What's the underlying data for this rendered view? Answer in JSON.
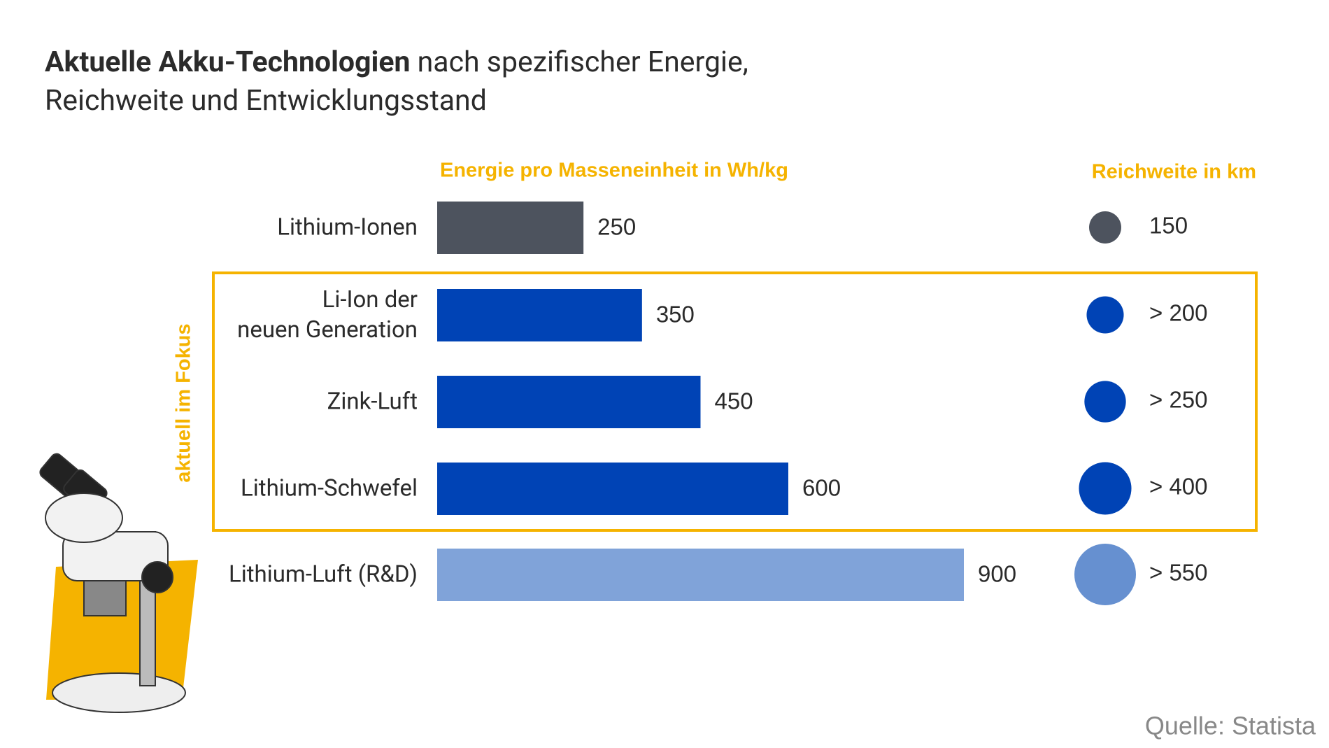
{
  "chart_data": {
    "type": "bar",
    "title_bold": "Aktuelle Akku-Technologien",
    "title": "nach spezifischer Energie,\nReichweite und Entwicklungsstand",
    "value_header": "Energie pro Masseneinheit in Wh/kg",
    "bubble_header": "Reichweite in km",
    "focus_label": "aktuell im Fokus",
    "source": "Quelle: Statista",
    "categories": [
      "Lithium-Ionen",
      "Li-Ion der\nneuen Generation",
      "Zink-Luft",
      "Lithium-Schwefel",
      "Lithium-Luft (R&D)"
    ],
    "values": [
      250,
      350,
      450,
      600,
      900
    ],
    "colors": [
      "#4d535e",
      "#0043b5",
      "#0043b5",
      "#0043b5",
      "#80a3d9"
    ],
    "bubble_values": [
      150,
      200,
      250,
      400,
      550
    ],
    "bubble_value_labels": [
      "150",
      "> 200",
      "> 250",
      "> 400",
      "> 550"
    ],
    "bubble_colors": [
      "#4d535e",
      "#0043b5",
      "#0043b5",
      "#0043b5",
      "#6690d0"
    ],
    "accent_color": "#f5b300"
  }
}
